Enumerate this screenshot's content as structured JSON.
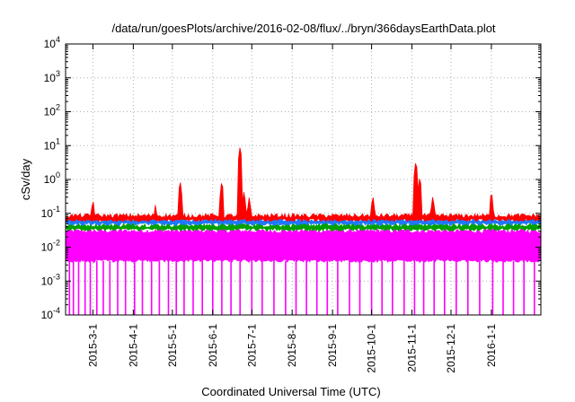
{
  "chart_data": {
    "type": "area",
    "title": "/data/run/goesPlots/archive/2016-02-08/flux/../bryn/366daysEarthData.plot",
    "xlabel": "Coordinated Universal Time (UTC)",
    "ylabel": "cSv/day",
    "yscale": "log",
    "ylim": [
      0.0001,
      10000
    ],
    "xlim": [
      "2015-02-08",
      "2016-02-08"
    ],
    "grid": true,
    "y_ticks": [
      {
        "base": "10",
        "exp": "-4",
        "value": 0.0001
      },
      {
        "base": "10",
        "exp": "-3",
        "value": 0.001
      },
      {
        "base": "10",
        "exp": "-2",
        "value": 0.01
      },
      {
        "base": "10",
        "exp": "-1",
        "value": 0.1
      },
      {
        "base": "10",
        "exp": "0",
        "value": 1
      },
      {
        "base": "10",
        "exp": "1",
        "value": 10
      },
      {
        "base": "10",
        "exp": "2",
        "value": 100
      },
      {
        "base": "10",
        "exp": "3",
        "value": 1000
      },
      {
        "base": "10",
        "exp": "4",
        "value": 10000
      }
    ],
    "x_ticks": [
      "2015-3-1",
      "2015-4-1",
      "2015-5-1",
      "2015-6-1",
      "2015-7-1",
      "2015-8-1",
      "2015-9-1",
      "2015-10-1",
      "2015-11-1",
      "2015-12-1",
      "2016-1-1"
    ],
    "series_colors": [
      "#ff0000",
      "#1e78ff",
      "#00a000",
      "#ff00ff"
    ],
    "series": [
      {
        "color": "#ff0000",
        "baseline": 0.085,
        "spikes": [
          [
            "2015-03-01",
            0.25
          ],
          [
            "2015-04-18",
            0.18
          ],
          [
            "2015-05-07",
            0.9
          ],
          [
            "2015-06-08",
            0.9
          ],
          [
            "2015-06-22",
            9.5
          ],
          [
            "2015-06-25",
            0.45
          ],
          [
            "2015-06-29",
            0.3
          ],
          [
            "2015-10-02",
            0.33
          ],
          [
            "2015-11-04",
            3.5
          ],
          [
            "2015-11-07",
            1.2
          ],
          [
            "2015-11-17",
            0.32
          ],
          [
            "2016-01-01",
            0.45
          ]
        ]
      },
      {
        "color": "#1e78ff",
        "baseline": 0.065,
        "spikes": [
          [
            "2015-03-01",
            0.15
          ],
          [
            "2015-05-07",
            0.5
          ],
          [
            "2015-06-08",
            0.5
          ],
          [
            "2015-06-22",
            2.2
          ],
          [
            "2015-06-25",
            0.3
          ],
          [
            "2015-10-02",
            0.15
          ],
          [
            "2015-11-04",
            1.5
          ],
          [
            "2015-11-07",
            0.6
          ],
          [
            "2015-11-17",
            0.2
          ],
          [
            "2016-01-01",
            0.2
          ]
        ]
      },
      {
        "color": "#00a000",
        "baseline": 0.045,
        "spikes": [
          [
            "2015-06-22",
            0.5
          ],
          [
            "2015-11-04",
            0.4
          ]
        ]
      },
      {
        "color": "#ff00ff",
        "baseline": 0.03,
        "floor": 0.004,
        "dropouts": [
          "2015-02-11",
          "2015-02-14",
          "2015-02-18",
          "2015-02-23",
          "2015-02-27",
          "2015-03-04",
          "2015-03-09",
          "2015-03-14",
          "2015-03-20",
          "2015-03-26",
          "2015-04-02",
          "2015-04-08",
          "2015-04-15",
          "2015-04-21",
          "2015-04-28",
          "2015-05-04",
          "2015-05-10",
          "2015-05-17",
          "2015-05-24",
          "2015-06-01",
          "2015-06-08",
          "2015-06-15",
          "2015-06-22",
          "2015-07-01",
          "2015-07-09",
          "2015-07-18",
          "2015-07-27",
          "2015-08-04",
          "2015-08-12",
          "2015-08-20",
          "2015-08-28",
          "2015-09-05",
          "2015-09-14",
          "2015-09-22",
          "2015-10-01",
          "2015-10-09",
          "2015-10-17",
          "2015-10-26",
          "2015-11-03",
          "2015-11-10",
          "2015-11-18",
          "2015-11-26",
          "2015-12-05",
          "2015-12-14",
          "2015-12-23",
          "2016-01-02",
          "2016-01-10",
          "2016-01-18",
          "2016-01-26",
          "2016-02-03"
        ]
      }
    ]
  }
}
